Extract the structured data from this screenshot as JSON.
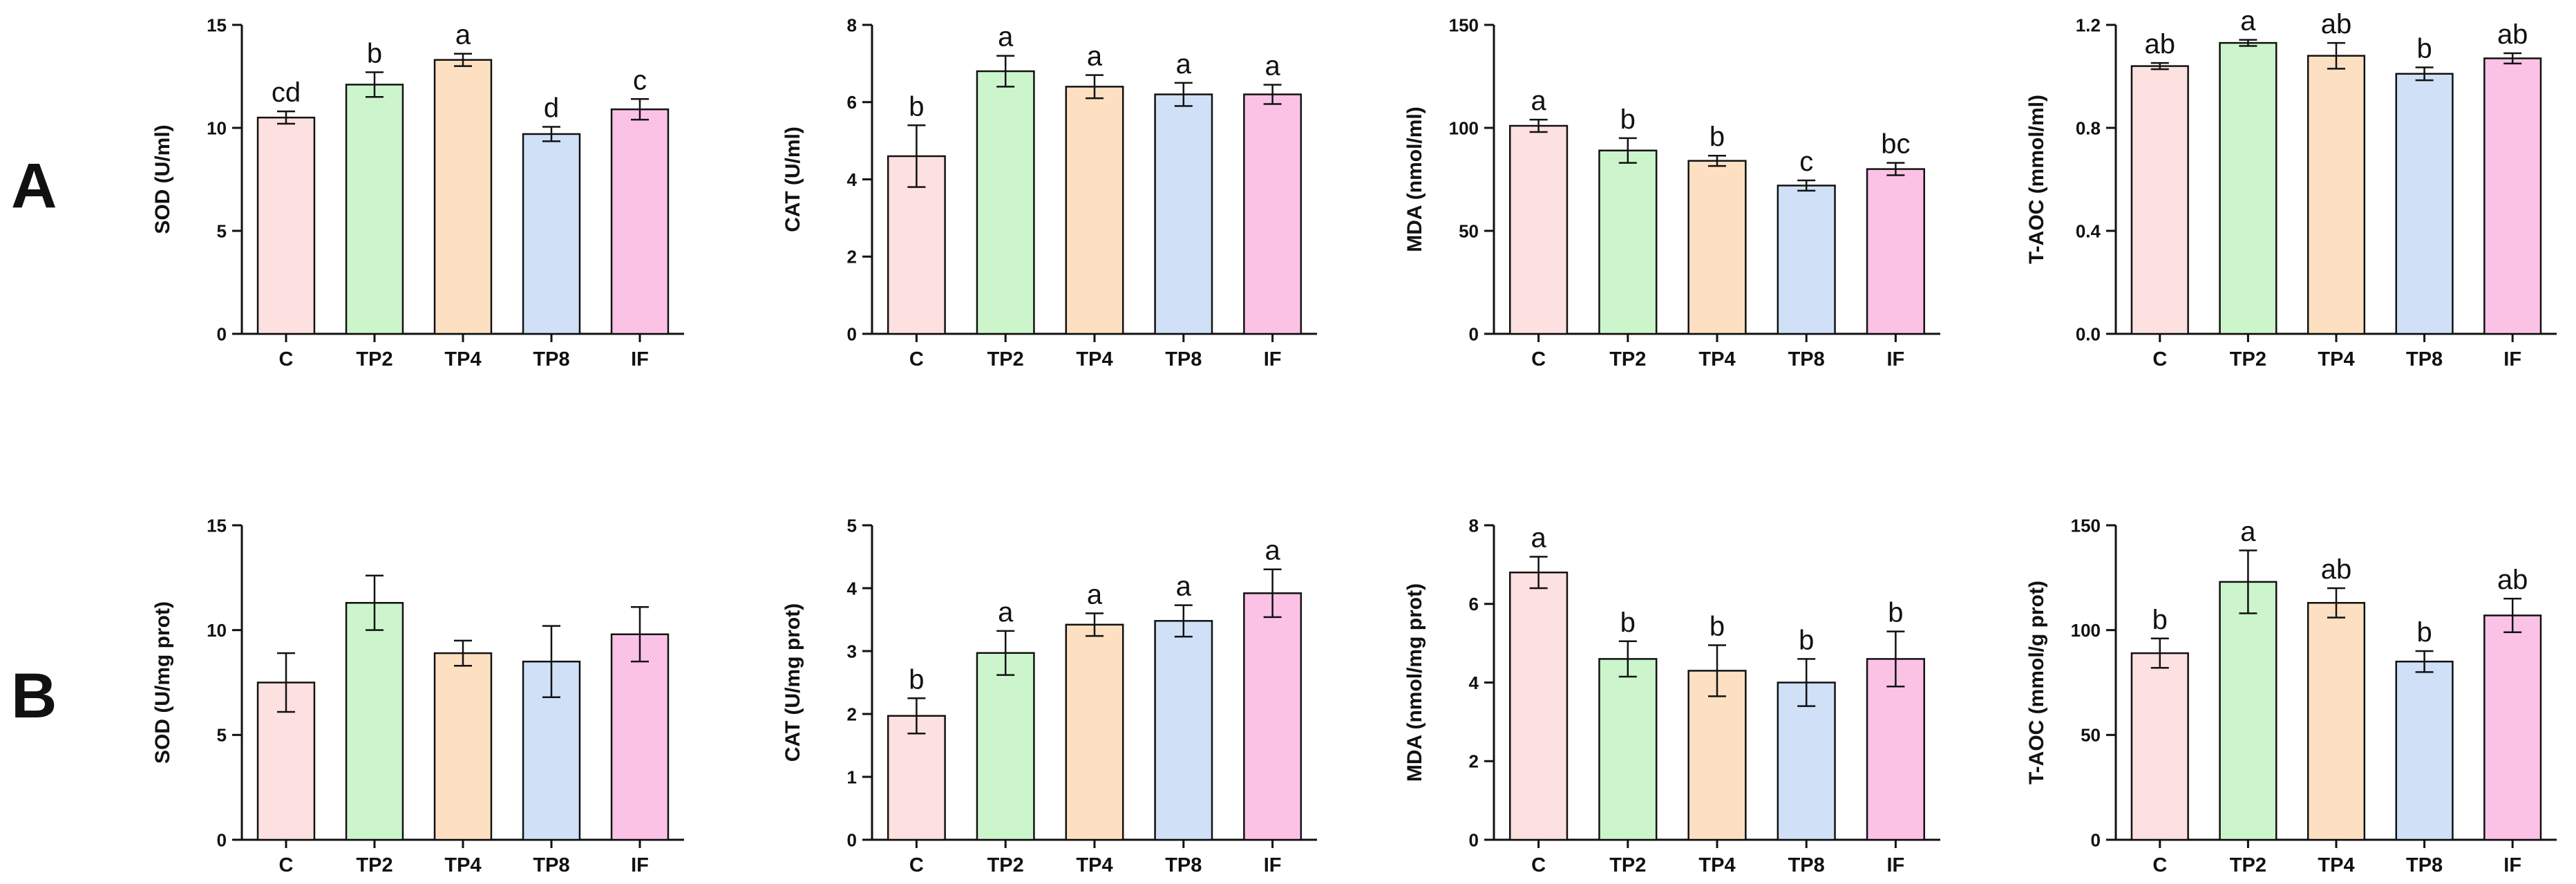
{
  "figure": {
    "row_labels": [
      "A",
      "B"
    ],
    "colors": {
      "C": "#fde0e0",
      "TP2": "#ccf5cc",
      "TP4": "#fde0c2",
      "TP8": "#cfe0f7",
      "IF": "#fcc2e6",
      "axis": "#111111",
      "error_bar": "#111111"
    }
  },
  "chart_data": [
    {
      "type": "bar",
      "row": "A",
      "categories": [
        "C",
        "TP2",
        "TP4",
        "TP8",
        "IF"
      ],
      "values": [
        10.5,
        12.1,
        13.3,
        9.7,
        10.9
      ],
      "errors": [
        0.3,
        0.6,
        0.3,
        0.35,
        0.5
      ],
      "letters": [
        "cd",
        "b",
        "a",
        "d",
        "c"
      ],
      "ylabel": "SOD (U/ml)",
      "ylim": [
        0,
        15
      ],
      "ticks": [
        0,
        5,
        10,
        15
      ],
      "tick_labels": [
        "0",
        "5",
        "10",
        "15"
      ]
    },
    {
      "type": "bar",
      "row": "A",
      "categories": [
        "C",
        "TP2",
        "TP4",
        "TP8",
        "IF"
      ],
      "values": [
        4.6,
        6.8,
        6.4,
        6.2,
        6.2
      ],
      "errors": [
        0.8,
        0.4,
        0.3,
        0.3,
        0.25
      ],
      "letters": [
        "b",
        "a",
        "a",
        "a",
        "a"
      ],
      "ylabel": "CAT (U/ml)",
      "ylim": [
        0,
        8
      ],
      "ticks": [
        0,
        2,
        4,
        6,
        8
      ],
      "tick_labels": [
        "0",
        "2",
        "4",
        "6",
        "8"
      ]
    },
    {
      "type": "bar",
      "row": "A",
      "categories": [
        "C",
        "TP2",
        "TP4",
        "TP8",
        "IF"
      ],
      "values": [
        101,
        89,
        84,
        72,
        80
      ],
      "errors": [
        3,
        6,
        2.5,
        2.5,
        3
      ],
      "letters": [
        "a",
        "b",
        "b",
        "c",
        "bc"
      ],
      "ylabel": "MDA (nmol/ml)",
      "ylim": [
        0,
        150
      ],
      "ticks": [
        0,
        50,
        100,
        150
      ],
      "tick_labels": [
        "0",
        "50",
        "100",
        "150"
      ]
    },
    {
      "type": "bar",
      "row": "A",
      "categories": [
        "C",
        "TP2",
        "TP4",
        "TP8",
        "IF"
      ],
      "values": [
        1.04,
        1.13,
        1.08,
        1.01,
        1.07
      ],
      "errors": [
        0.012,
        0.012,
        0.05,
        0.025,
        0.02
      ],
      "letters": [
        "ab",
        "a",
        "ab",
        "b",
        "ab"
      ],
      "ylabel": "T-AOC (mmol/ml)",
      "ylim": [
        0,
        1.2
      ],
      "ticks": [
        0,
        0.4,
        0.8,
        1.2
      ],
      "tick_labels": [
        "0.0",
        "0.4",
        "0.8",
        "1.2"
      ]
    },
    {
      "type": "bar",
      "row": "B",
      "categories": [
        "C",
        "TP2",
        "TP4",
        "TP8",
        "IF"
      ],
      "values": [
        7.5,
        11.3,
        8.9,
        8.5,
        9.8
      ],
      "errors": [
        1.4,
        1.3,
        0.6,
        1.7,
        1.3
      ],
      "letters": [
        "",
        "",
        "",
        "",
        ""
      ],
      "ylabel": "SOD (U/mg prot)",
      "ylim": [
        0,
        15
      ],
      "ticks": [
        0,
        5,
        10,
        15
      ],
      "tick_labels": [
        "0",
        "5",
        "10",
        "15"
      ]
    },
    {
      "type": "bar",
      "row": "B",
      "categories": [
        "C",
        "TP2",
        "TP4",
        "TP8",
        "IF"
      ],
      "values": [
        1.97,
        2.97,
        3.42,
        3.48,
        3.92
      ],
      "errors": [
        0.28,
        0.35,
        0.18,
        0.25,
        0.38
      ],
      "letters": [
        "b",
        "a",
        "a",
        "a",
        "a"
      ],
      "ylabel": "CAT (U/mg prot)",
      "ylim": [
        0,
        5
      ],
      "ticks": [
        0,
        1,
        2,
        3,
        4,
        5
      ],
      "tick_labels": [
        "0",
        "1",
        "2",
        "3",
        "4",
        "5"
      ]
    },
    {
      "type": "bar",
      "row": "B",
      "categories": [
        "C",
        "TP2",
        "TP4",
        "TP8",
        "IF"
      ],
      "values": [
        6.8,
        4.6,
        4.3,
        4.0,
        4.6
      ],
      "errors": [
        0.4,
        0.45,
        0.65,
        0.6,
        0.7
      ],
      "letters": [
        "a",
        "b",
        "b",
        "b",
        "b"
      ],
      "ylabel": "MDA (nmol/mg prot)",
      "ylim": [
        0,
        8
      ],
      "ticks": [
        0,
        2,
        4,
        6,
        8
      ],
      "tick_labels": [
        "0",
        "2",
        "4",
        "6",
        "8"
      ]
    },
    {
      "type": "bar",
      "row": "B",
      "categories": [
        "C",
        "TP2",
        "TP4",
        "TP8",
        "IF"
      ],
      "values": [
        89,
        123,
        113,
        85,
        107
      ],
      "errors": [
        7,
        15,
        7,
        5,
        8
      ],
      "letters": [
        "b",
        "a",
        "ab",
        "b",
        "ab"
      ],
      "ylabel": "T-AOC (mmol/g prot)",
      "ylim": [
        0,
        150
      ],
      "ticks": [
        0,
        50,
        100,
        150
      ],
      "tick_labels": [
        "0",
        "50",
        "100",
        "150"
      ]
    }
  ]
}
